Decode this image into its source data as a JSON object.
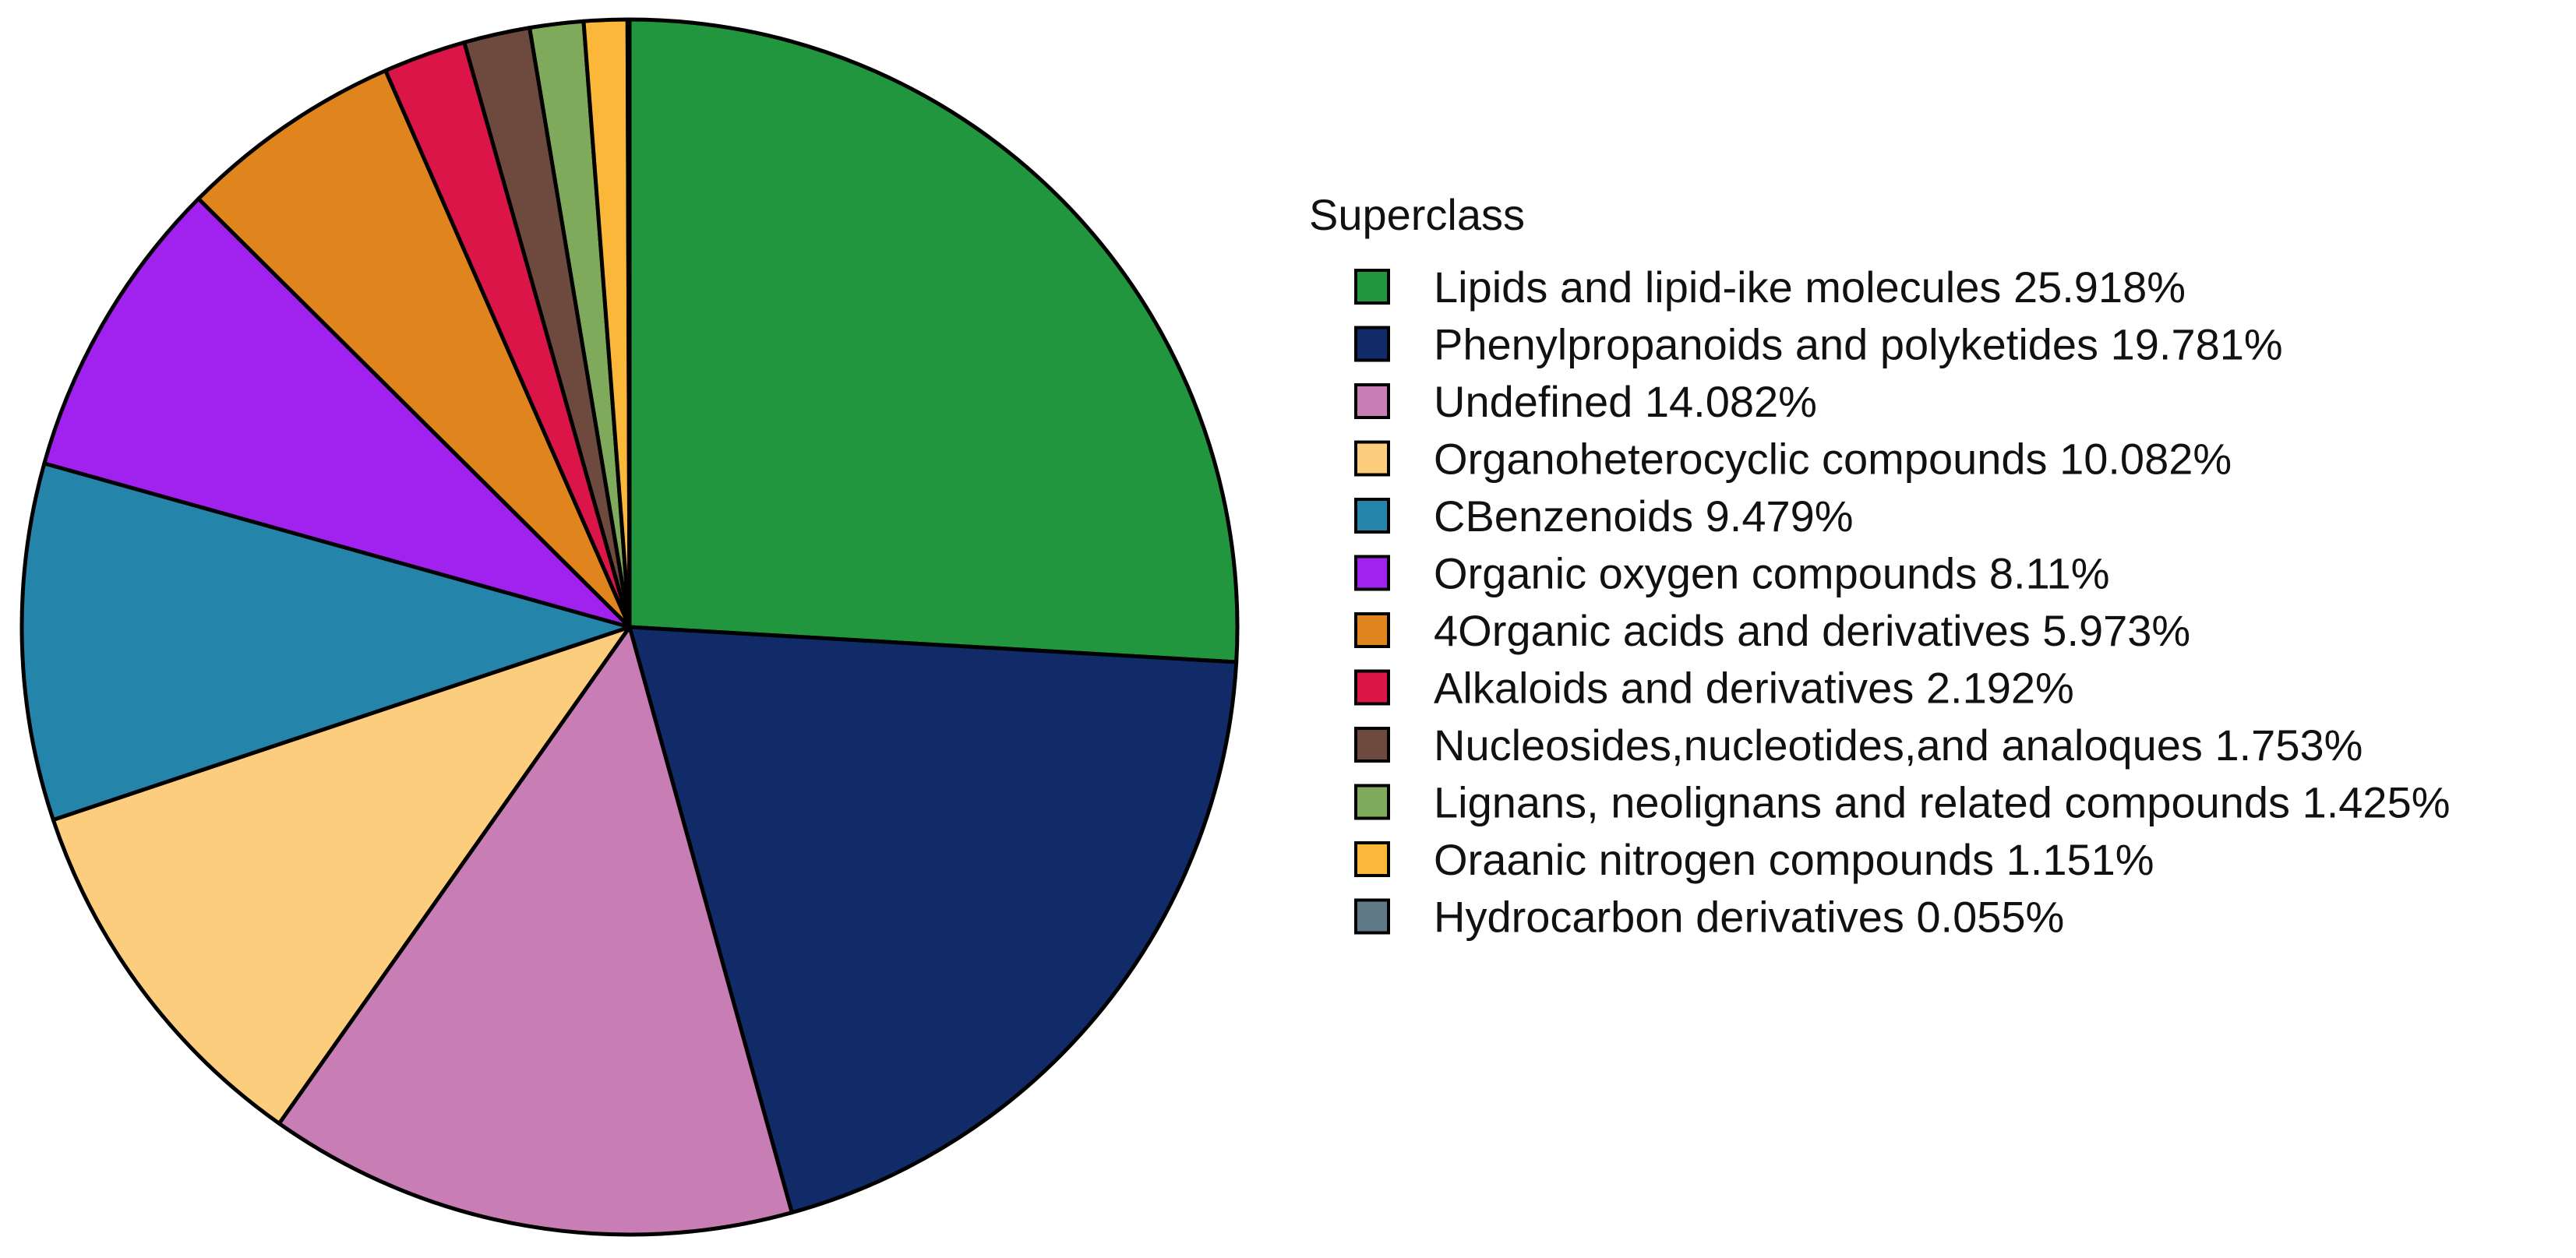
{
  "chart_data": {
    "type": "pie",
    "legend_title": "Superclass",
    "legend_position": "right",
    "slices": [
      {
        "label": "Lipids and lipid-ike molecules 25.918%",
        "value": 25.918,
        "color": "#22963F"
      },
      {
        "label": "Phenylpropanoids and polyketides 19.781%",
        "value": 19.781,
        "color": "#112A68"
      },
      {
        "label": "Undefined 14.082%",
        "value": 14.082,
        "color": "#C87EB4"
      },
      {
        "label": "Organoheterocyclic compounds 10.082%",
        "value": 10.082,
        "color": "#FDCD7E"
      },
      {
        "label": "CBenzenoids 9.479%",
        "value": 9.479,
        "color": "#2584A9"
      },
      {
        "label": "Organic oxygen compounds 8.11%",
        "value": 8.11,
        "color": "#A122EF"
      },
      {
        "label": "4Organic acids and derivatives 5.973%",
        "value": 5.973,
        "color": "#E0851D"
      },
      {
        "label": "Alkaloids and derivatives 2.192%",
        "value": 2.192,
        "color": "#DB1547"
      },
      {
        "label": "Nucleosides,nucleotides,and analoques 1.753%",
        "value": 1.753,
        "color": "#6E4A3E"
      },
      {
        "label": "Lignans, neolignans and related compounds 1.425%",
        "value": 1.425,
        "color": "#7FAA5B"
      },
      {
        "label": "Oraanic nitrogen compounds 1.151%",
        "value": 1.151,
        "color": "#FBB73A"
      },
      {
        "label": "Hydrocarbon derivatives 0.055%",
        "value": 0.055,
        "color": "#5F7A86"
      }
    ]
  }
}
